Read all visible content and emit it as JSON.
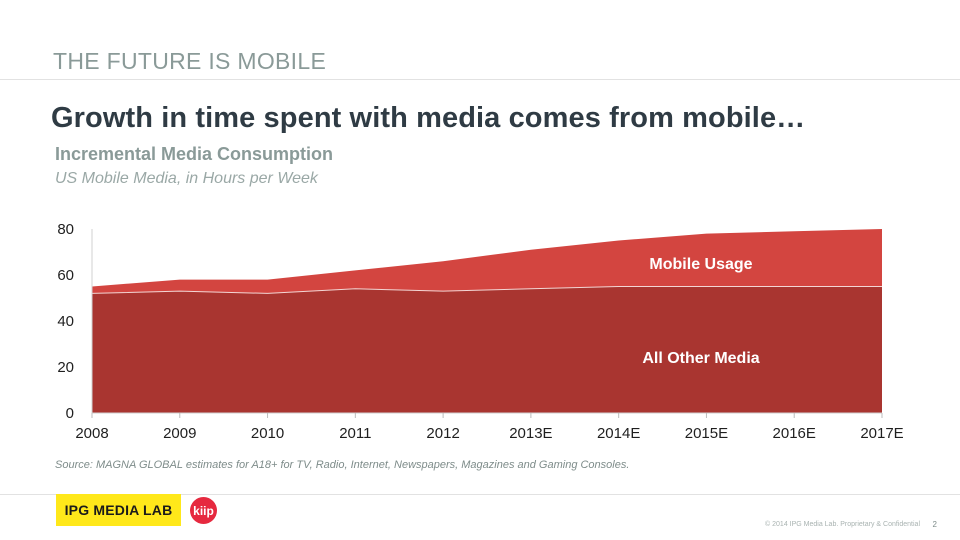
{
  "section_label": "THE FUTURE IS MOBILE",
  "headline": "Growth in time spent with media comes from mobile…",
  "chart_data": {
    "type": "area",
    "title": "Incremental Media Consumption",
    "subtitle": "US Mobile Media, in Hours per Week",
    "categories": [
      "2008",
      "2009",
      "2010",
      "2011",
      "2012",
      "2013E",
      "2014E",
      "2015E",
      "2016E",
      "2017E"
    ],
    "stacked": true,
    "series": [
      {
        "name": "All Other Media",
        "values": [
          52,
          53,
          52,
          54,
          53,
          54,
          55,
          55,
          55,
          55
        ],
        "color": "#a93530"
      },
      {
        "name": "Mobile Usage",
        "values": [
          3,
          5,
          6,
          8,
          13,
          17,
          20,
          23,
          24,
          25
        ],
        "color": "#d34540"
      }
    ],
    "ylim": [
      0,
      80
    ],
    "yticks": [
      0,
      20,
      40,
      60,
      80
    ],
    "xlabel": "",
    "ylabel": "",
    "grid": false,
    "legend": "inline labels on areas"
  },
  "source_note": "Source: MAGNA GLOBAL estimates for A18+ for TV, Radio, Internet, Newspapers, Magazines and Gaming Consoles.",
  "footer": {
    "logo_ipg": "IPG MEDIA LAB",
    "logo_kiip": "kiip",
    "copyright": "© 2014 IPG Media Lab. Proprietary & Confidential",
    "page_number": "2"
  }
}
